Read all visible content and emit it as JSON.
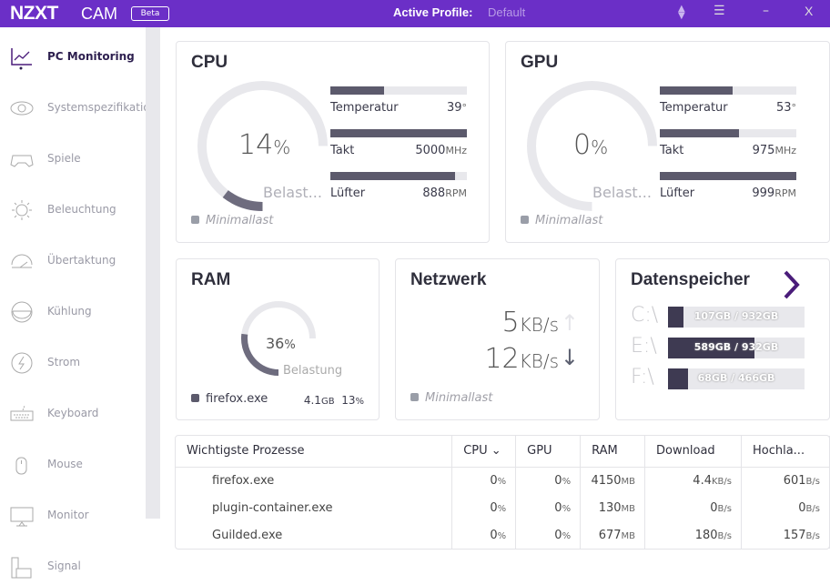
{
  "titlebar": {
    "logo": "NZXT",
    "app": "CAM",
    "badge": "Beta",
    "profile_label": "Active Profile:",
    "profile_value": "Default",
    "icons": [
      "sort-icon",
      "collapse-menu-icon",
      "minimize-icon",
      "close-icon"
    ],
    "minimize": "–",
    "close": "X"
  },
  "accent": "#6b2fc7",
  "sidebar": {
    "items": [
      {
        "label": "PC Monitoring",
        "icon": "chart-line-icon",
        "active": true
      },
      {
        "label": "Systemspezifikation",
        "icon": "eye-icon"
      },
      {
        "label": "Spiele",
        "icon": "gamepad-icon"
      },
      {
        "label": "Beleuchtung",
        "icon": "sun-icon"
      },
      {
        "label": "Übertaktung",
        "icon": "speedometer-icon"
      },
      {
        "label": "Kühlung",
        "icon": "cooling-icon"
      },
      {
        "label": "Strom",
        "icon": "power-icon"
      },
      {
        "label": "Keyboard",
        "icon": "keyboard-icon"
      },
      {
        "label": "Mouse",
        "icon": "mouse-icon"
      },
      {
        "label": "Monitor",
        "icon": "monitor-icon"
      },
      {
        "label": "Signal",
        "icon": "signal-device-icon"
      }
    ]
  },
  "cpu": {
    "title": "CPU",
    "load": 14,
    "load_unit": "%",
    "load_label": "Belast...",
    "status": "Minimallast",
    "stats": [
      {
        "label": "Temperatur",
        "value": "39",
        "unit": "°",
        "fill": 0.39
      },
      {
        "label": "Takt",
        "value": "5000",
        "unit": "MHz",
        "fill": 1.0
      },
      {
        "label": "Lüfter",
        "value": "888",
        "unit": "RPM",
        "fill": 0.91
      }
    ]
  },
  "gpu": {
    "title": "GPU",
    "load": 0,
    "load_unit": "%",
    "load_label": "Belast...",
    "status": "Minimallast",
    "stats": [
      {
        "label": "Temperatur",
        "value": "53",
        "unit": "°",
        "fill": 0.53
      },
      {
        "label": "Takt",
        "value": "975",
        "unit": "MHz",
        "fill": 0.58
      },
      {
        "label": "Lüfter",
        "value": "999",
        "unit": "RPM",
        "fill": 1.0
      }
    ]
  },
  "ram": {
    "title": "RAM",
    "load": 36,
    "load_unit": "%",
    "load_label": "Belastung",
    "process": "firefox.exe",
    "process_mem": "4.1",
    "process_mem_unit": "GB",
    "process_pct": "13",
    "process_pct_unit": "%"
  },
  "network": {
    "title": "Netzwerk",
    "up": "5",
    "up_unit": "KB/s",
    "down": "12",
    "down_unit": "KB/s",
    "status": "Minimallast"
  },
  "storage": {
    "title": "Datenspeicher",
    "drives": [
      {
        "label": "C:\\",
        "text": "107GB / 932GB",
        "fill": 0.115
      },
      {
        "label": "E:\\",
        "text": "589GB / 932GB",
        "fill": 0.632
      },
      {
        "label": "F:\\",
        "text": "68GB / 466GB",
        "fill": 0.146
      }
    ]
  },
  "processes": {
    "headers": [
      "Wichtigste Prozesse",
      "CPU",
      "GPU",
      "RAM",
      "Download",
      "Hochla..."
    ],
    "rows": [
      {
        "name": "firefox.exe",
        "cpu": "0",
        "cpu_unit": "%",
        "gpu": "0",
        "gpu_unit": "%",
        "ram": "4150",
        "ram_unit": "MB",
        "down": "4.4",
        "down_unit": "KB/s",
        "up": "601",
        "up_unit": "B/s"
      },
      {
        "name": "plugin-container.exe",
        "cpu": "0",
        "cpu_unit": "%",
        "gpu": "0",
        "gpu_unit": "%",
        "ram": "130",
        "ram_unit": "MB",
        "down": "0",
        "down_unit": "B/s",
        "up": "0",
        "up_unit": "B/s"
      },
      {
        "name": "Guilded.exe",
        "cpu": "0",
        "cpu_unit": "%",
        "gpu": "0",
        "gpu_unit": "%",
        "ram": "677",
        "ram_unit": "MB",
        "down": "180",
        "down_unit": "B/s",
        "up": "157",
        "up_unit": "B/s"
      }
    ]
  }
}
